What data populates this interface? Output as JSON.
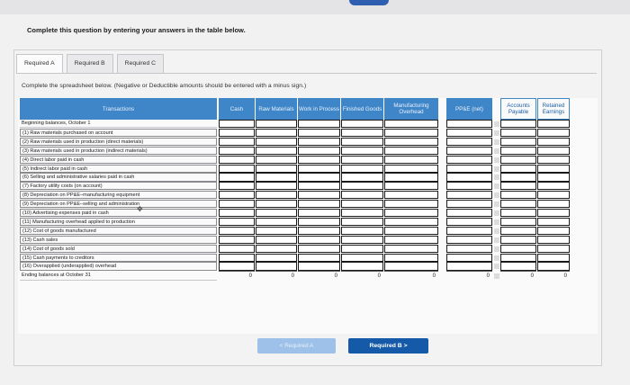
{
  "instruction": "Complete this question by entering your answers in the table below.",
  "tabs": [
    {
      "label": "Required A",
      "active": true
    },
    {
      "label": "Required B",
      "active": false
    },
    {
      "label": "Required C",
      "active": false
    }
  ],
  "sheet_instruction": "Complete the spreadsheet below. (Negative or Deductible amounts should be entered with a minus sign.)",
  "columns": {
    "transactions": "Transactions",
    "cash": "Cash",
    "raw_materials": "Raw Materials",
    "work_in_process": "Work in Process",
    "finished_goods": "Finished Goods",
    "manufacturing_overhead": "Manufacturing Overhead",
    "ppe_net": "PP&E (net)",
    "accounts_payable": "Accounts Payable",
    "retained_earnings": "Retained Earnings"
  },
  "rows": [
    "Beginning balances, October 1",
    "(1) Raw materials purchased on account",
    "(2) Raw materials used in production (direct materials)",
    "(3) Raw materials used in production (indirect materials)",
    "(4) Direct labor paid in cash",
    "(5) Indirect labor paid in cash",
    "(6) Selling and administrative salaries paid in cash",
    "(7) Factory utility costs (on account)",
    "(8) Depreciation on PP&E–manufacturing equipment",
    "(9) Depreciation on PP&E–selling and administration",
    "(10) Advertising expenses paid in cash",
    "(11) Manufacturing overhead applied to production",
    "(12) Cost of goods manufactured",
    "(13) Cash sales",
    "(14) Cost of goods sold",
    "(15) Cash payments to creditors",
    "(16) Overapplied (underapplied) overhead"
  ],
  "ending_label": "Ending balances at October 31",
  "totals": {
    "cash": "0",
    "raw_materials": "0",
    "work_in_process": "0",
    "finished_goods": "0",
    "manufacturing_overhead": "0",
    "ppe_net": "0",
    "accounts_payable": "0",
    "retained_earnings": "0"
  },
  "nav": {
    "prev": "< Required A",
    "next": "Required B  >"
  },
  "colors": {
    "header_blue": "#3f86c9",
    "next_button": "#155aa8",
    "prev_button_disabled": "#9dc1e8"
  }
}
